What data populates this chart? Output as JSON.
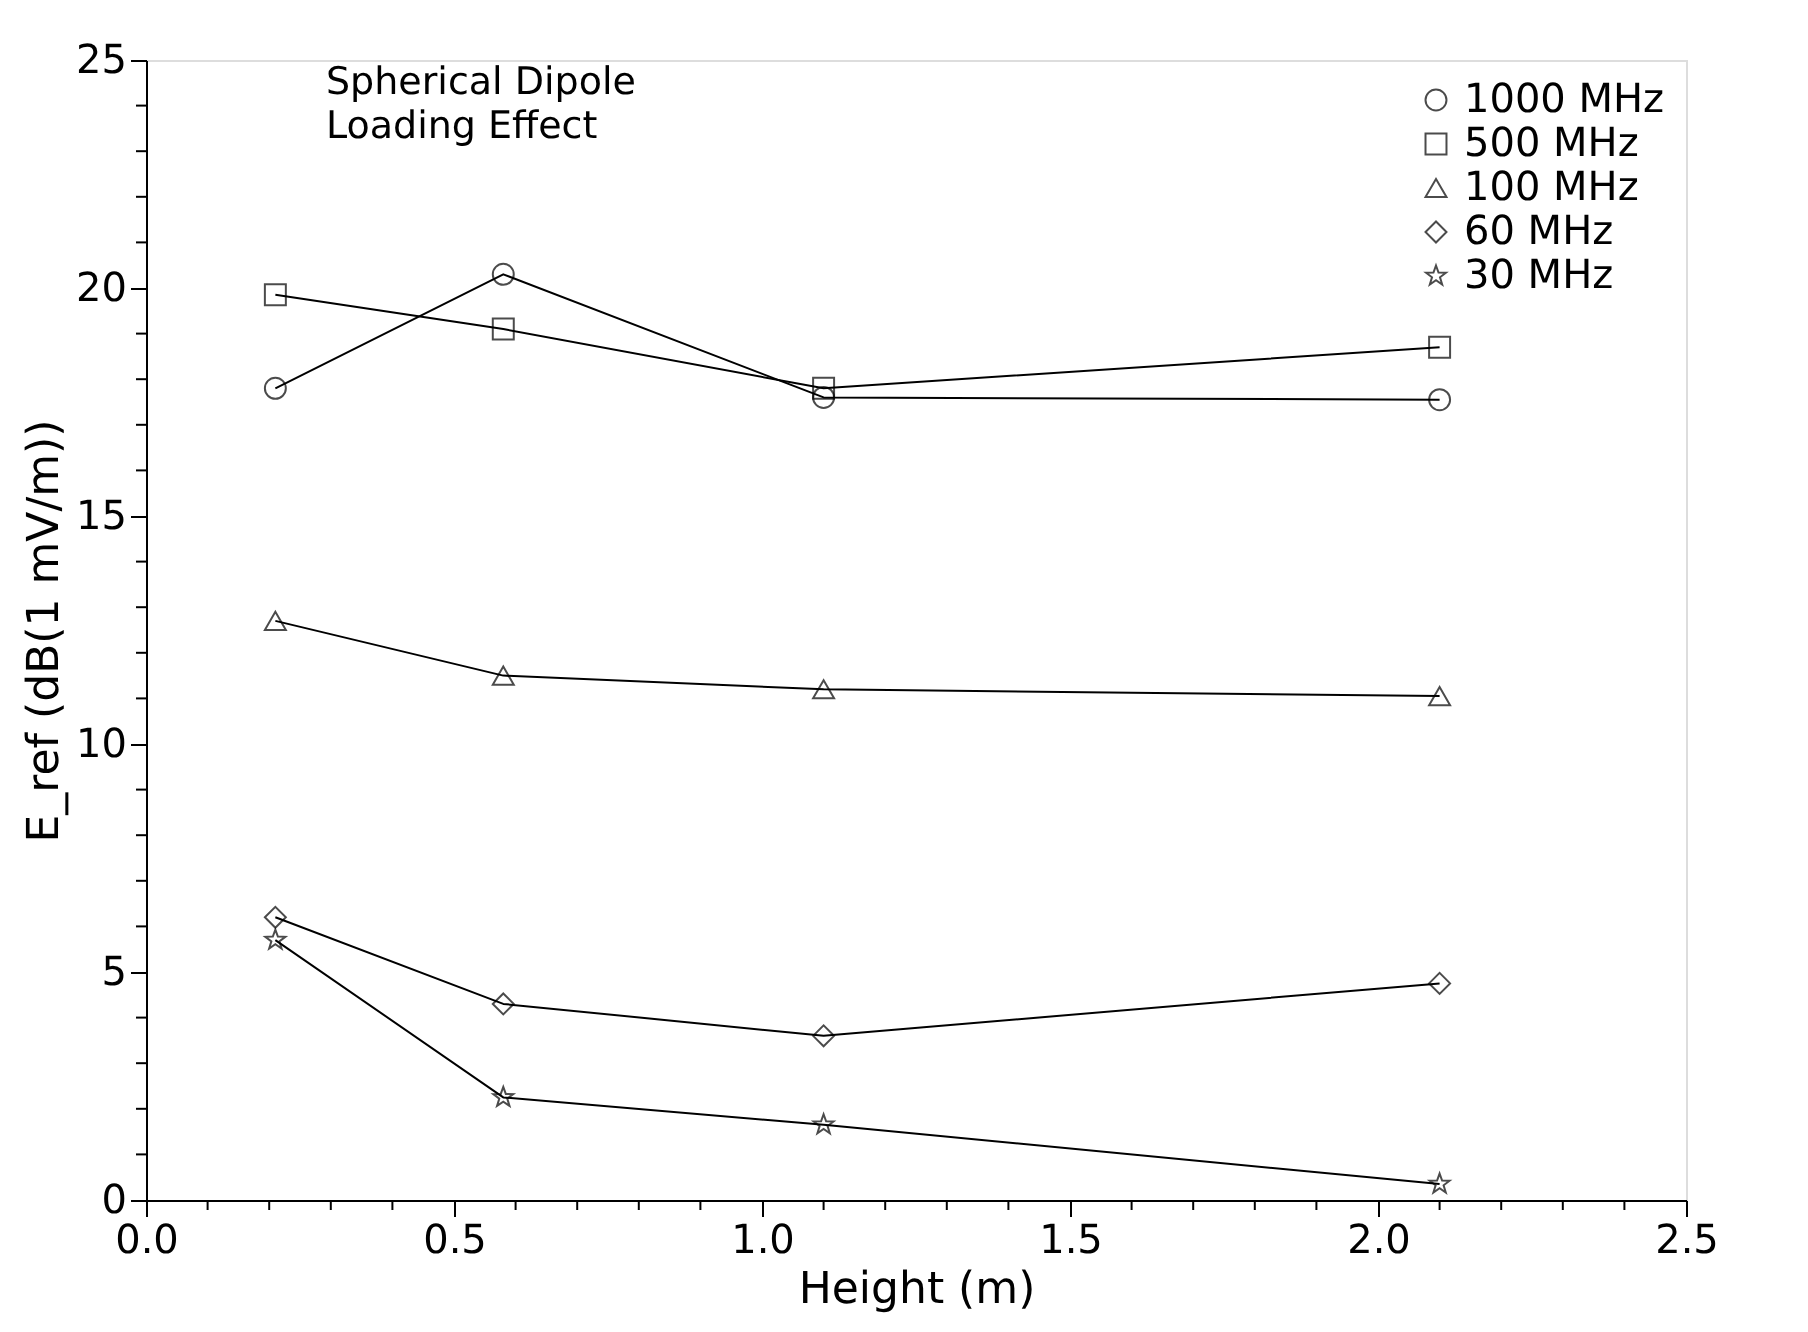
{
  "chart_data": {
    "type": "line",
    "xlabel": "Height  (m)",
    "ylabel": "E_ref  (dB(1 mV/m))",
    "annotations": [
      "Spherical Dipole",
      "Loading Effect"
    ],
    "x": [
      0.21,
      0.58,
      1.1,
      2.1
    ],
    "xlim": [
      0,
      2.5
    ],
    "ylim": [
      0,
      25
    ],
    "xticks": [
      {
        "value": 0,
        "label": "0.0"
      },
      {
        "value": 0.1,
        "label": null
      },
      {
        "value": 0.2,
        "label": null
      },
      {
        "value": 0.3,
        "label": null
      },
      {
        "value": 0.4,
        "label": null
      },
      {
        "value": 0.5,
        "label": "0.5"
      },
      {
        "value": 0.6,
        "label": null
      },
      {
        "value": 0.7,
        "label": null
      },
      {
        "value": 0.8,
        "label": null
      },
      {
        "value": 0.9,
        "label": null
      },
      {
        "value": 1,
        "label": "1.0"
      },
      {
        "value": 1.1,
        "label": null
      },
      {
        "value": 1.2,
        "label": null
      },
      {
        "value": 1.3,
        "label": null
      },
      {
        "value": 1.4,
        "label": null
      },
      {
        "value": 1.5,
        "label": "1.5"
      },
      {
        "value": 1.6,
        "label": null
      },
      {
        "value": 1.7,
        "label": null
      },
      {
        "value": 1.8,
        "label": null
      },
      {
        "value": 1.9,
        "label": null
      },
      {
        "value": 2,
        "label": "2.0"
      },
      {
        "value": 2.1,
        "label": null
      },
      {
        "value": 2.2,
        "label": null
      },
      {
        "value": 2.3,
        "label": null
      },
      {
        "value": 2.4,
        "label": null
      },
      {
        "value": 2.5,
        "label": "2.5"
      }
    ],
    "yticks": [
      0,
      {
        "value": 1,
        "label": null
      },
      {
        "value": 2,
        "label": null
      },
      {
        "value": 3,
        "label": null
      },
      {
        "value": 4,
        "label": null
      },
      5,
      {
        "value": 6,
        "label": null
      },
      {
        "value": 7,
        "label": null
      },
      {
        "value": 8,
        "label": null
      },
      {
        "value": 9,
        "label": null
      },
      10,
      {
        "value": 11,
        "label": null
      },
      {
        "value": 12,
        "label": null
      },
      {
        "value": 13,
        "label": null
      },
      {
        "value": 14,
        "label": null
      },
      15,
      {
        "value": 16,
        "label": null
      },
      {
        "value": 17,
        "label": null
      },
      {
        "value": 18,
        "label": null
      },
      {
        "value": 19,
        "label": null
      },
      20,
      {
        "value": 21,
        "label": null
      },
      {
        "value": 22,
        "label": null
      },
      {
        "value": 23,
        "label": null
      },
      {
        "value": 24,
        "label": null
      },
      25
    ],
    "grid": false,
    "legend": "top right",
    "line_style": "solid",
    "series": [
      {
        "name": "1000 MHz",
        "color": "#000000",
        "marker": "circle",
        "values": [
          17.8,
          20.3,
          17.6,
          17.55
        ]
      },
      {
        "name": "500 MHz",
        "color": "#000000",
        "marker": "square",
        "values": [
          19.85,
          19.1,
          17.8,
          18.7
        ]
      },
      {
        "name": "100 MHz",
        "color": "#000000",
        "marker": "triangle",
        "values": [
          12.7,
          11.5,
          11.2,
          11.05
        ]
      },
      {
        "name": "60 MHz",
        "color": "#000000",
        "marker": "diamond",
        "values": [
          6.2,
          4.3,
          3.6,
          4.75
        ]
      },
      {
        "name": "30 MHz",
        "color": "#000000",
        "marker": "star",
        "values": [
          5.7,
          2.25,
          1.65,
          0.35
        ]
      }
    ]
  }
}
